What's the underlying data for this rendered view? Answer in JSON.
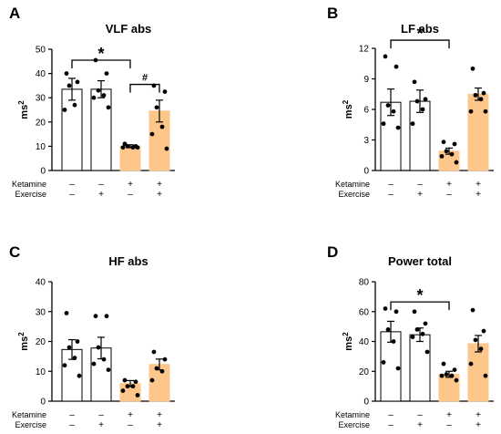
{
  "style": {
    "open_bar_color": "#ffffff",
    "filled_bar_color": "#fdc68a",
    "stroke_color": "#000000"
  },
  "groups": {
    "row_labels": [
      "Ketamine",
      "Exercise"
    ],
    "ketamine": [
      "–",
      "–",
      "+",
      "+"
    ],
    "exercise": [
      "–",
      "+",
      "–",
      "+"
    ]
  },
  "chart_data": [
    {
      "type": "bar",
      "letter": "A",
      "title": "VLF abs",
      "ylabel": "ms",
      "ylabel_sup": "2",
      "ylim": [
        0,
        50
      ],
      "yticks": [
        0,
        10,
        20,
        30,
        40,
        50
      ],
      "means": [
        33.5,
        33.5,
        10,
        24.5
      ],
      "sems": [
        4.5,
        3.5,
        0.6,
        4.5
      ],
      "points": [
        [
          40,
          36.5,
          35,
          27,
          25
        ],
        [
          45.5,
          40,
          33,
          31,
          30,
          26
        ],
        [
          11,
          10,
          10,
          9.5,
          9.5,
          9.5
        ],
        [
          35,
          32.5,
          26,
          18,
          15,
          9
        ]
      ],
      "significance": [
        {
          "from": 0,
          "to": 2,
          "y": 45.5,
          "mark": "*"
        },
        {
          "from": 2,
          "to": 3,
          "y": 35.5,
          "mark": "#"
        }
      ]
    },
    {
      "type": "bar",
      "letter": "B",
      "title": "LF abs",
      "ylabel": "ms",
      "ylabel_sup": "2",
      "ylim": [
        0,
        12
      ],
      "yticks": [
        0,
        3,
        6,
        9,
        12
      ],
      "means": [
        6.7,
        6.8,
        1.9,
        7.5
      ],
      "sems": [
        1.3,
        1.1,
        0.3,
        0.6
      ],
      "points": [
        [
          11.2,
          10.2,
          6.4,
          5.8,
          4.6,
          4.2
        ],
        [
          8.7,
          7,
          6.8,
          6,
          4.6
        ],
        [
          2.8,
          2.6,
          1.9,
          1.6,
          1.4,
          0.8
        ],
        [
          10,
          7.6,
          7.4,
          7,
          5.8,
          5.8
        ]
      ],
      "significance": [
        {
          "from": 0,
          "to": 2,
          "y": 12.8,
          "mark": "*"
        }
      ]
    },
    {
      "type": "bar",
      "letter": "C",
      "title": "HF abs",
      "ylabel": "ms",
      "ylabel_sup": "2",
      "ylim": [
        0,
        40
      ],
      "yticks": [
        0,
        10,
        20,
        30,
        40
      ],
      "means": [
        17.3,
        17.8,
        5.9,
        12.3
      ],
      "sems": [
        3.3,
        3.6,
        1,
        1.8
      ],
      "points": [
        [
          29.5,
          20,
          18,
          14.5,
          12,
          8.5
        ],
        [
          28.5,
          28.5,
          18,
          14,
          12.5,
          10.5
        ],
        [
          7,
          6.5,
          5,
          5,
          3.5,
          2
        ],
        [
          16.5,
          14,
          11,
          10,
          7
        ]
      ],
      "significance": []
    },
    {
      "type": "bar",
      "letter": "D",
      "title": "Power total",
      "ylabel": "ms",
      "ylabel_sup": "2",
      "ylim": [
        0,
        80
      ],
      "yticks": [
        0,
        20,
        40,
        60,
        80
      ],
      "means": [
        46.5,
        44.5,
        18,
        38.5
      ],
      "sems": [
        7,
        4.5,
        2,
        5.5
      ],
      "points": [
        [
          62,
          60,
          48,
          40,
          26,
          22
        ],
        [
          60,
          52,
          48,
          45,
          43,
          33
        ],
        [
          25,
          21,
          18,
          17,
          17,
          14
        ],
        [
          61,
          47,
          41,
          35,
          25,
          17
        ]
      ],
      "significance": [
        {
          "from": 0,
          "to": 2,
          "y": 66.5,
          "mark": "*"
        }
      ]
    }
  ]
}
